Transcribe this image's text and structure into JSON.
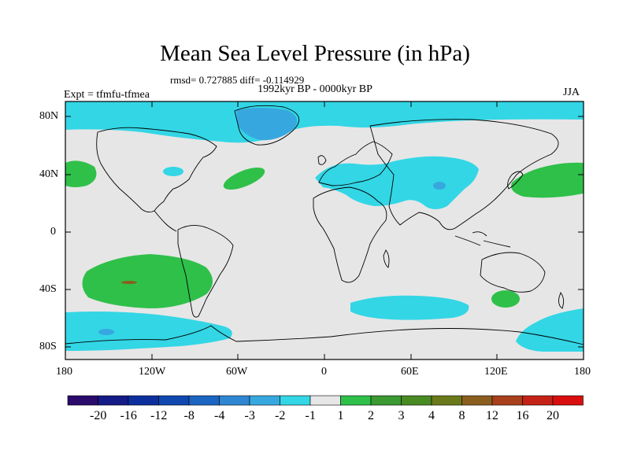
{
  "title": "Mean Sea Level Pressure (in hPa)",
  "stats_text": "rmsd= 0.727885 diff= -0.114929",
  "period": "1992kyr BP - 0000kyr BP",
  "experiment": "Expt = tfmfu-tfmea",
  "season": "JJA",
  "lat_labels": [
    "80N",
    "40N",
    "0",
    "40S",
    "80S"
  ],
  "lon_labels": [
    "180",
    "120W",
    "60W",
    "0",
    "60E",
    "120E",
    "180"
  ],
  "colorbar": {
    "labels": [
      "-20",
      "-16",
      "-12",
      "-8",
      "-4",
      "-3",
      "-2",
      "-1",
      "1",
      "2",
      "3",
      "4",
      "8",
      "12",
      "16",
      "20"
    ],
    "colors": [
      "#2a0a6b",
      "#141a86",
      "#0d2f9e",
      "#1048b0",
      "#1c64c2",
      "#2f86d3",
      "#37a8df",
      "#33d6e5",
      "#e6e6e6",
      "#2fc04a",
      "#3a9930",
      "#4a8a22",
      "#6a7a1a",
      "#8a5e1e",
      "#a8401c",
      "#c42216",
      "#d90e0e"
    ]
  },
  "map_colors": {
    "ocean_neutral": "#e6e6e6",
    "cyan": "#33d6e5",
    "light_blue": "#37a8df",
    "green": "#2fc04a",
    "brown": "#8a5e1e"
  }
}
